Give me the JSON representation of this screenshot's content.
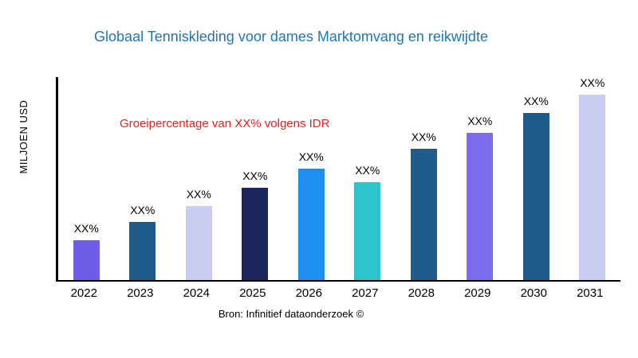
{
  "title": "Globaal Tenniskleding voor dames Marktomvang en reikwijdte",
  "annotation": "Groeipercentage van XX% volgens IDR",
  "source": "Bron: Infinitief dataonderzoek ©",
  "chart_data": {
    "type": "bar",
    "title": "Globaal Tenniskleding voor dames Marktomvang en reikwijdte",
    "xlabel": "",
    "ylabel": "MILJOEN USD",
    "categories": [
      "2022",
      "2023",
      "2024",
      "2025",
      "2026",
      "2027",
      "2028",
      "2029",
      "2030",
      "2031"
    ],
    "values": [
      50,
      73,
      93,
      116,
      140,
      123,
      165,
      185,
      210,
      233
    ],
    "ylim": [
      0,
      255
    ],
    "bar_labels": [
      "XX%",
      "XX%",
      "XX%",
      "XX%",
      "XX%",
      "XX%",
      "XX%",
      "XX%",
      "XX%",
      "XX%"
    ],
    "bar_colors": [
      "#6f5de8",
      "#1f5c8b",
      "#c9cdf2",
      "#19265c",
      "#1e8ff2",
      "#2ec4cc",
      "#1f5c8b",
      "#7c6cf2",
      "#1f5c8b",
      "#c9cdf2"
    ],
    "grid": false,
    "legend": false,
    "annotation": "Groeipercentage van XX% volgens IDR",
    "source_caption": "Bron: Infinitief dataonderzoek ©"
  }
}
